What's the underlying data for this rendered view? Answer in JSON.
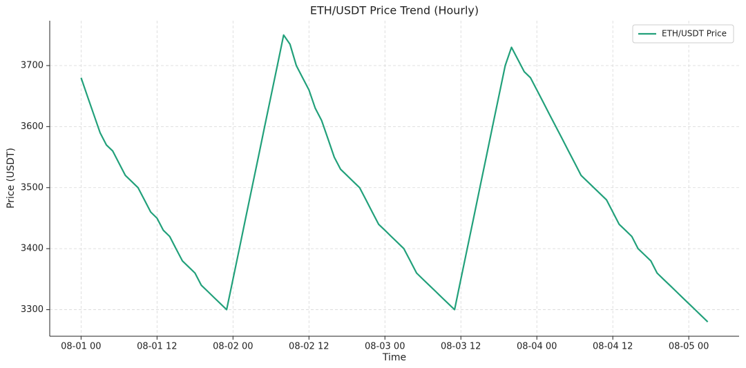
{
  "chart_data": {
    "type": "line",
    "title": "ETH/USDT Price Trend (Hourly)",
    "xlabel": "Time",
    "ylabel": "Price (USDT)",
    "x": [
      "08-01 00",
      "08-01 01",
      "08-01 02",
      "08-01 03",
      "08-01 04",
      "08-01 05",
      "08-01 06",
      "08-01 07",
      "08-01 08",
      "08-01 09",
      "08-01 10",
      "08-01 11",
      "08-01 12",
      "08-01 13",
      "08-01 14",
      "08-01 15",
      "08-01 16",
      "08-01 17",
      "08-01 18",
      "08-01 19",
      "08-01 20",
      "08-01 21",
      "08-01 22",
      "08-01 23",
      "08-02 00",
      "08-02 01",
      "08-02 02",
      "08-02 03",
      "08-02 04",
      "08-02 05",
      "08-02 06",
      "08-02 07",
      "08-02 08",
      "08-02 09",
      "08-02 10",
      "08-02 11",
      "08-02 12",
      "08-02 13",
      "08-02 14",
      "08-02 15",
      "08-02 16",
      "08-02 17",
      "08-02 18",
      "08-02 19",
      "08-02 20",
      "08-02 21",
      "08-02 22",
      "08-02 23",
      "08-03 00",
      "08-03 01",
      "08-03 02",
      "08-03 03",
      "08-03 04",
      "08-03 05",
      "08-03 06",
      "08-03 07",
      "08-03 08",
      "08-03 09",
      "08-03 10",
      "08-03 11",
      "08-03 12",
      "08-03 13",
      "08-03 14",
      "08-03 15",
      "08-03 16",
      "08-03 17",
      "08-03 18",
      "08-03 19",
      "08-03 20",
      "08-03 21",
      "08-03 22",
      "08-03 23",
      "08-04 00",
      "08-04 01",
      "08-04 02",
      "08-04 03",
      "08-04 04",
      "08-04 05",
      "08-04 06",
      "08-04 07",
      "08-04 08",
      "08-04 09",
      "08-04 10",
      "08-04 11",
      "08-04 12",
      "08-04 13",
      "08-04 14",
      "08-04 15",
      "08-04 16",
      "08-04 17",
      "08-04 18",
      "08-04 19",
      "08-04 20",
      "08-04 21",
      "08-04 22",
      "08-04 23",
      "08-05 00",
      "08-05 01",
      "08-05 02",
      "08-05 03"
    ],
    "series": [
      {
        "name": "ETH/USDT Price",
        "color": "#21a07a",
        "values": [
          3680,
          3650,
          3620,
          3590,
          3570,
          3560,
          3540,
          3520,
          3510,
          3500,
          3480,
          3460,
          3450,
          3430,
          3420,
          3400,
          3380,
          3370,
          3360,
          3340,
          3330,
          3320,
          3310,
          3300,
          3350,
          3400,
          3450,
          3500,
          3550,
          3600,
          3650,
          3700,
          3750,
          3735,
          3700,
          3680,
          3660,
          3630,
          3610,
          3580,
          3550,
          3530,
          3520,
          3510,
          3500,
          3480,
          3460,
          3440,
          3430,
          3420,
          3410,
          3400,
          3380,
          3360,
          3350,
          3340,
          3330,
          3320,
          3310,
          3300,
          3350,
          3400,
          3450,
          3500,
          3550,
          3600,
          3650,
          3700,
          3730,
          3710,
          3690,
          3680,
          3660,
          3640,
          3620,
          3600,
          3580,
          3560,
          3540,
          3520,
          3510,
          3500,
          3490,
          3480,
          3460,
          3440,
          3430,
          3420,
          3400,
          3390,
          3380,
          3360,
          3350,
          3340,
          3330,
          3320,
          3310,
          3300,
          3290,
          3280
        ]
      }
    ],
    "xticks": [
      "08-01 00",
      "08-01 12",
      "08-02 00",
      "08-02 12",
      "08-03 00",
      "08-03 12",
      "08-04 00",
      "08-04 12",
      "08-05 00"
    ],
    "ylim": [
      3256.5,
      3773.5
    ],
    "yticks": [
      3300,
      3400,
      3500,
      3600,
      3700
    ],
    "grid": true,
    "legend": "upper right"
  }
}
